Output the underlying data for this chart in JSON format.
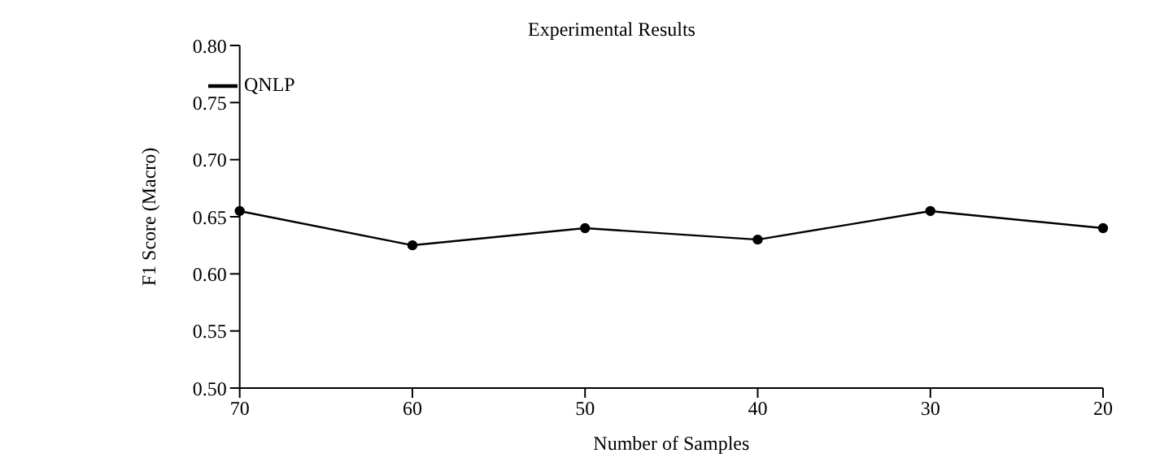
{
  "chart_data": {
    "type": "line",
    "title": "Experimental Results",
    "xlabel": "Number of Samples",
    "ylabel": "F1 Score (Macro)",
    "categories": [
      "70",
      "60",
      "50",
      "40",
      "30",
      "20"
    ],
    "series": [
      {
        "name": "QNLP",
        "color": "#000000",
        "values": [
          0.655,
          0.625,
          0.64,
          0.63,
          0.655,
          0.64
        ]
      }
    ],
    "ylim": [
      0.5,
      0.8
    ],
    "yticks": [
      {
        "value": 0.5,
        "label": "0.50"
      },
      {
        "value": 0.55,
        "label": "0.55"
      },
      {
        "value": 0.6,
        "label": "0.60"
      },
      {
        "value": 0.65,
        "label": "0.65"
      },
      {
        "value": 0.7,
        "label": "0.70"
      },
      {
        "value": 0.75,
        "label": "0.75"
      },
      {
        "value": 0.8,
        "label": "0.80"
      }
    ],
    "grid": false,
    "legend": "top left",
    "marker": "circle",
    "line_style": "solid"
  }
}
